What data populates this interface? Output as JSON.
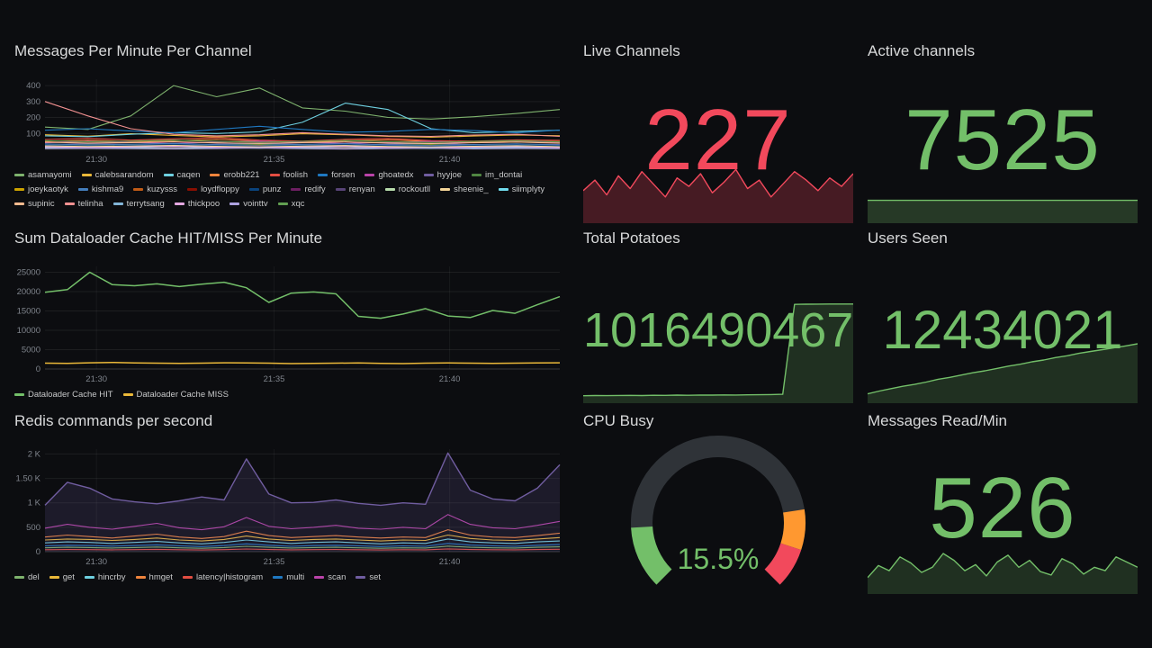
{
  "panels": {
    "messages": {
      "title": "Messages Per Minute Per Channel"
    },
    "dataloader": {
      "title": "Sum Dataloader Cache HIT/MISS Per Minute"
    },
    "redis": {
      "title": "Redis commands per second"
    },
    "live_channels": {
      "title": "Live Channels",
      "value": "227",
      "color": "#F2495C"
    },
    "active_channels": {
      "title": "Active channels",
      "value": "7525",
      "color": "#73BF69"
    },
    "total_potatoes": {
      "title": "Total Potatoes",
      "value": "1016490467",
      "color": "#73BF69"
    },
    "users_seen": {
      "title": "Users Seen",
      "value": "12434021",
      "color": "#73BF69"
    },
    "cpu_busy": {
      "title": "CPU Busy",
      "value": "15.5%"
    },
    "messages_read": {
      "title": "Messages Read/Min",
      "value": "526",
      "color": "#73BF69"
    }
  },
  "timeline_ticks": [
    "21:30",
    "21:35",
    "21:40"
  ],
  "chart_data": [
    {
      "id": "messages",
      "type": "line",
      "title": "Messages Per Minute Per Channel",
      "ylim": [
        0,
        440
      ],
      "yticks": [
        {
          "v": 100,
          "label": "100"
        },
        {
          "v": 200,
          "label": "200"
        },
        {
          "v": 300,
          "label": "300"
        },
        {
          "v": 400,
          "label": "400"
        }
      ],
      "xticks": [
        {
          "f": 0.1,
          "label": "21:30"
        },
        {
          "f": 0.445,
          "label": "21:35"
        },
        {
          "f": 0.786,
          "label": "21:40"
        }
      ],
      "series": [
        {
          "name": "asamayomi",
          "color": "#7EB26D",
          "values": [
            140,
            125,
            210,
            400,
            330,
            385,
            260,
            240,
            200,
            190,
            205,
            225,
            250
          ]
        },
        {
          "name": "calebsarandom",
          "color": "#EAB839",
          "values": [
            92,
            83,
            98,
            88,
            78,
            85,
            98,
            92,
            82,
            76,
            84,
            90,
            86
          ]
        },
        {
          "name": "caqen",
          "color": "#6ED0E0",
          "values": [
            85,
            80,
            95,
            105,
            100,
            110,
            170,
            290,
            250,
            130,
            105,
            112,
            120
          ]
        },
        {
          "name": "erobb221",
          "color": "#EF843C",
          "values": [
            50,
            58,
            48,
            55,
            63,
            52,
            46,
            54,
            60,
            50,
            46,
            53,
            49
          ]
        },
        {
          "name": "foolish",
          "color": "#E24D42",
          "values": [
            62,
            70,
            58,
            66,
            74,
            58,
            52,
            63,
            69,
            55,
            52,
            60,
            57
          ]
        },
        {
          "name": "forsen",
          "color": "#1F78C1",
          "values": [
            120,
            130,
            115,
            105,
            125,
            145,
            125,
            108,
            112,
            125,
            118,
            105,
            120
          ]
        },
        {
          "name": "ghoatedx",
          "color": "#BA43A9",
          "values": [
            42,
            50,
            44,
            38,
            46,
            52,
            44,
            38,
            44,
            50,
            42,
            46,
            44
          ]
        },
        {
          "name": "hyyjoe",
          "color": "#705DA0",
          "values": [
            30,
            36,
            32,
            28,
            34,
            38,
            32,
            28,
            33,
            37,
            30,
            34,
            31
          ]
        },
        {
          "name": "im_dontai",
          "color": "#508642",
          "values": [
            25,
            30,
            27,
            23,
            28,
            32,
            26,
            22,
            27,
            31,
            25,
            28,
            26
          ]
        },
        {
          "name": "joeykaotyk",
          "color": "#CCA300",
          "values": [
            20,
            26,
            22,
            18,
            24,
            28,
            22,
            18,
            23,
            27,
            20,
            24,
            21
          ]
        },
        {
          "name": "kishma9",
          "color": "#447EBC",
          "values": [
            35,
            28,
            33,
            38,
            30,
            26,
            32,
            36,
            29,
            25,
            31,
            35,
            28
          ]
        },
        {
          "name": "kuzysss",
          "color": "#C15C17",
          "values": [
            15,
            20,
            17,
            13,
            18,
            22,
            16,
            12,
            17,
            21,
            15,
            18,
            16
          ]
        },
        {
          "name": "loydfloppy",
          "color": "#890F02",
          "values": [
            12,
            16,
            13,
            10,
            14,
            18,
            12,
            9,
            13,
            17,
            11,
            14,
            12
          ]
        },
        {
          "name": "punz",
          "color": "#0A437C",
          "values": [
            28,
            22,
            26,
            31,
            24,
            20,
            26,
            30,
            23,
            19,
            25,
            29,
            22
          ]
        },
        {
          "name": "redify",
          "color": "#6D1F62",
          "values": [
            10,
            14,
            11,
            8,
            12,
            16,
            10,
            7,
            11,
            15,
            9,
            12,
            10
          ]
        },
        {
          "name": "renyan",
          "color": "#584477",
          "values": [
            18,
            14,
            17,
            21,
            15,
            12,
            17,
            20,
            14,
            11,
            16,
            19,
            13
          ]
        },
        {
          "name": "rockoutll",
          "color": "#B7DBAB",
          "values": [
            8,
            12,
            9,
            6,
            10,
            14,
            8,
            5,
            9,
            13,
            7,
            10,
            8
          ]
        },
        {
          "name": "sheenie_",
          "color": "#F4D598",
          "values": [
            22,
            18,
            21,
            25,
            19,
            16,
            21,
            24,
            18,
            15,
            20,
            23,
            17
          ]
        },
        {
          "name": "siimplyty",
          "color": "#70DBED",
          "values": [
            14,
            10,
            13,
            17,
            11,
            8,
            13,
            16,
            10,
            7,
            12,
            15,
            9
          ]
        },
        {
          "name": "supinic",
          "color": "#F9BA8F",
          "values": [
            45,
            40,
            43,
            48,
            41,
            38,
            43,
            47,
            40,
            37,
            42,
            46,
            39
          ]
        },
        {
          "name": "telinha",
          "color": "#F29191",
          "values": [
            300,
            210,
            130,
            95,
            85,
            92,
            105,
            95,
            85,
            82,
            90,
            95,
            82
          ]
        },
        {
          "name": "terrytsang",
          "color": "#82B5D8",
          "values": [
            6,
            9,
            7,
            4,
            8,
            11,
            6,
            3,
            7,
            10,
            5,
            8,
            6
          ]
        },
        {
          "name": "thickpoo",
          "color": "#E5A8E2",
          "values": [
            16,
            12,
            15,
            19,
            13,
            10,
            15,
            18,
            12,
            9,
            14,
            17,
            11
          ]
        },
        {
          "name": "vointtv",
          "color": "#AEA2E0",
          "values": [
            5,
            7,
            5,
            3,
            6,
            9,
            5,
            2,
            6,
            8,
            4,
            6,
            5
          ]
        },
        {
          "name": "xqc",
          "color": "#629E51",
          "values": [
            55,
            48,
            52,
            58,
            50,
            45,
            51,
            56,
            48,
            44,
            50,
            55,
            47
          ]
        }
      ]
    },
    {
      "id": "dataloader",
      "type": "line",
      "title": "Sum Dataloader Cache HIT/MISS Per Minute",
      "ylim": [
        0,
        26500
      ],
      "yticks": [
        {
          "v": 0,
          "label": "0"
        },
        {
          "v": 5000,
          "label": "5000"
        },
        {
          "v": 10000,
          "label": "10000"
        },
        {
          "v": 15000,
          "label": "15000"
        },
        {
          "v": 20000,
          "label": "20000"
        },
        {
          "v": 25000,
          "label": "25000"
        }
      ],
      "xticks": [
        {
          "f": 0.1,
          "label": "21:30"
        },
        {
          "f": 0.445,
          "label": "21:35"
        },
        {
          "f": 0.786,
          "label": "21:40"
        }
      ],
      "series": [
        {
          "name": "Dataloader Cache HIT",
          "color": "#73BF69",
          "width": 1.5,
          "values": [
            19800,
            20500,
            25000,
            21800,
            21500,
            22000,
            21300,
            21900,
            22400,
            21000,
            17200,
            19600,
            19900,
            19400,
            13600,
            13100,
            14200,
            15600,
            13700,
            13300,
            15100,
            14400,
            16600,
            18700
          ]
        },
        {
          "name": "Dataloader Cache MISS",
          "color": "#EAB839",
          "width": 1.5,
          "values": [
            1500,
            1450,
            1600,
            1700,
            1550,
            1500,
            1450,
            1500,
            1600,
            1550,
            1500,
            1400,
            1450,
            1500,
            1550,
            1450,
            1400,
            1500,
            1550,
            1500,
            1450,
            1500,
            1550,
            1600
          ]
        }
      ]
    },
    {
      "id": "redis",
      "type": "line",
      "title": "Redis commands per second",
      "ylim": [
        0,
        2100
      ],
      "yticks": [
        {
          "v": 0,
          "label": "0"
        },
        {
          "v": 500,
          "label": "500"
        },
        {
          "v": 1000,
          "label": "1 K"
        },
        {
          "v": 1500,
          "label": "1.50 K"
        },
        {
          "v": 2000,
          "label": "2 K"
        }
      ],
      "xticks": [
        {
          "f": 0.1,
          "label": "21:30"
        },
        {
          "f": 0.445,
          "label": "21:35"
        },
        {
          "f": 0.786,
          "label": "21:40"
        }
      ],
      "series": [
        {
          "name": "del",
          "color": "#7EB26D",
          "values": [
            80,
            90,
            85,
            75,
            85,
            95,
            80,
            70,
            85,
            110,
            90,
            75,
            85,
            90,
            80,
            70,
            80,
            75,
            115,
            90,
            80,
            75,
            90,
            100
          ]
        },
        {
          "name": "get",
          "color": "#EAB839",
          "values": [
            240,
            260,
            250,
            230,
            250,
            280,
            240,
            220,
            250,
            320,
            260,
            230,
            250,
            260,
            240,
            220,
            240,
            230,
            340,
            270,
            240,
            230,
            260,
            290
          ]
        },
        {
          "name": "hincrby",
          "color": "#6ED0E0",
          "values": [
            180,
            200,
            190,
            170,
            190,
            210,
            180,
            160,
            190,
            240,
            200,
            170,
            190,
            200,
            180,
            160,
            180,
            170,
            260,
            200,
            180,
            170,
            200,
            220
          ]
        },
        {
          "name": "hmget",
          "color": "#EF843C",
          "values": [
            300,
            340,
            310,
            280,
            320,
            360,
            300,
            270,
            310,
            420,
            330,
            290,
            310,
            330,
            300,
            280,
            300,
            290,
            450,
            340,
            300,
            290,
            330,
            380
          ]
        },
        {
          "name": "latency|histogram",
          "color": "#E24D42",
          "values": [
            40,
            45,
            42,
            38,
            42,
            48,
            40,
            35,
            42,
            55,
            45,
            38,
            42,
            45,
            40,
            35,
            40,
            38,
            58,
            45,
            40,
            38,
            45,
            50
          ]
        },
        {
          "name": "multi",
          "color": "#1F78C1",
          "values": [
            120,
            130,
            125,
            115,
            125,
            140,
            120,
            105,
            125,
            160,
            130,
            110,
            125,
            130,
            120,
            105,
            120,
            110,
            170,
            135,
            120,
            110,
            130,
            145
          ]
        },
        {
          "name": "scan",
          "color": "#BA43A9",
          "values": [
            480,
            560,
            500,
            460,
            520,
            580,
            490,
            450,
            510,
            700,
            520,
            470,
            500,
            540,
            480,
            460,
            500,
            470,
            760,
            560,
            490,
            470,
            540,
            620
          ]
        },
        {
          "name": "set",
          "color": "#705DA0",
          "width": 1.4,
          "fill": "rgba(112,93,160,0.18)",
          "values": [
            950,
            1420,
            1300,
            1080,
            1020,
            980,
            1040,
            1120,
            1060,
            1900,
            1180,
            1000,
            1010,
            1060,
            990,
            950,
            1000,
            970,
            2020,
            1260,
            1080,
            1040,
            1300,
            1780
          ]
        }
      ]
    },
    {
      "id": "spark-live",
      "type": "area",
      "color": "#F2495C",
      "fill": "rgba(242,73,92,0.25)",
      "ylim": [
        0,
        260
      ],
      "values": [
        150,
        200,
        130,
        220,
        160,
        240,
        180,
        120,
        210,
        170,
        230,
        140,
        190,
        250,
        160,
        200,
        120,
        180,
        240,
        200,
        150,
        210,
        170,
        230
      ]
    },
    {
      "id": "spark-active",
      "type": "area",
      "color": "#73BF69",
      "fill": "rgba(115,191,105,0.25)",
      "ylim": [
        0,
        18800
      ],
      "values": [
        7525,
        7525
      ]
    },
    {
      "id": "spark-potatoes",
      "type": "area",
      "color": "#73BF69",
      "fill": "rgba(115,191,105,0.20)",
      "ylim": [
        0,
        1070
      ],
      "values": [
        68,
        70,
        69,
        71,
        72,
        70,
        73,
        72,
        74,
        73,
        75,
        74,
        76,
        75,
        77,
        78,
        80,
        83,
        1012,
        1014,
        1015,
        1016,
        1016,
        1016
      ]
    },
    {
      "id": "spark-users",
      "type": "area",
      "color": "#73BF69",
      "fill": "rgba(115,191,105,0.20)",
      "ylim": [
        0,
        22
      ],
      "values": [
        1.8,
        2.4,
        2.9,
        3.4,
        3.8,
        4.3,
        4.9,
        5.3,
        5.8,
        6.3,
        6.7,
        7.2,
        7.7,
        8.1,
        8.6,
        9.0,
        9.5,
        9.9,
        10.4,
        10.8,
        11.2,
        11.6,
        12.0,
        12.43
      ]
    },
    {
      "id": "spark-msgread",
      "type": "area",
      "color": "#73BF69",
      "fill": "rgba(115,191,105,0.20)",
      "ylim": [
        0,
        700
      ],
      "values": [
        180,
        320,
        260,
        420,
        350,
        240,
        300,
        460,
        380,
        260,
        330,
        200,
        360,
        440,
        300,
        380,
        250,
        210,
        400,
        340,
        220,
        300,
        260,
        420,
        360,
        300
      ]
    },
    {
      "id": "gauge-cpu",
      "type": "gauge",
      "value": 15.5,
      "min": 0,
      "max": 100,
      "label": "15.5%",
      "ring_color": "#2f3338",
      "thresholds": [
        {
          "value": 0,
          "color": "#73BF69"
        },
        {
          "value": 80,
          "color": "#FF9830"
        },
        {
          "value": 90,
          "color": "#F2495C"
        }
      ]
    }
  ]
}
